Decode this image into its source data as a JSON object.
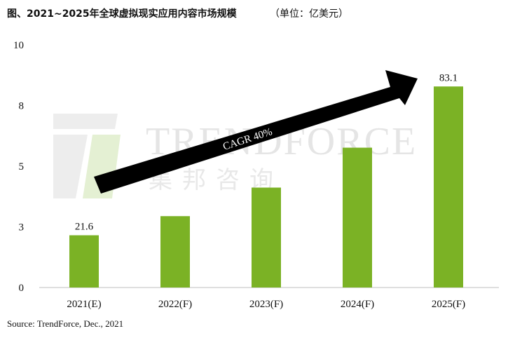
{
  "title": {
    "main": "图、2021~2025年全球虚拟现实应用内容市场规模",
    "unit": "（单位：亿美元）"
  },
  "watermark": {
    "brand": "TRENDFORCE",
    "chinese": "集邦咨询"
  },
  "source": "Source: TrendForce, Dec., 2021",
  "chart_data": {
    "type": "bar",
    "categories": [
      "2021(E)",
      "2022(F)",
      "2023(F)",
      "2024(F)",
      "2025(F)"
    ],
    "values": [
      21.6,
      29.5,
      41.3,
      57.8,
      83.1
    ],
    "data_labels": [
      "21.6",
      "",
      "",
      "",
      "83.1"
    ],
    "y_ticks": [
      "0",
      "3",
      "5",
      "8",
      "10"
    ],
    "annotation": "CAGR 40%",
    "bar_color": "#7bb225",
    "arrow_color": "#000000",
    "grid": false,
    "legend": "none"
  }
}
